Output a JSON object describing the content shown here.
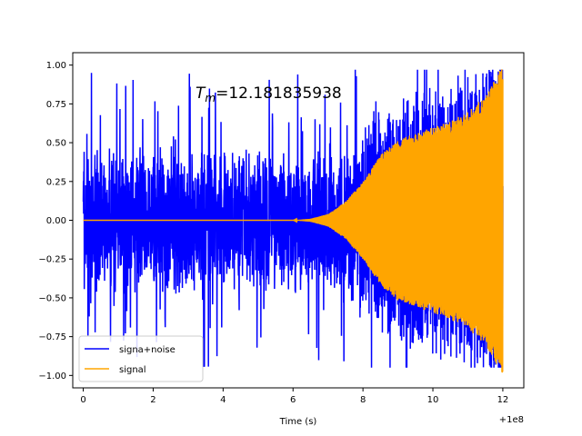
{
  "chart_data": {
    "type": "line",
    "title": "",
    "xlabel": "Time (s)",
    "ylabel": "",
    "x_offset_label": "+1e8",
    "xlim": [
      -0.3,
      12.6
    ],
    "ylim": [
      -1.08,
      1.08
    ],
    "x_ticks": [
      0,
      2,
      4,
      6,
      8,
      10,
      12
    ],
    "x_tick_labels": [
      "0",
      "2",
      "4",
      "6",
      "8",
      "10",
      "12"
    ],
    "y_ticks": [
      -1.0,
      -0.75,
      -0.5,
      -0.25,
      0.0,
      0.25,
      0.5,
      0.75,
      1.0
    ],
    "y_tick_labels": [
      "−1.00",
      "−0.75",
      "−0.50",
      "−0.25",
      "0.00",
      "0.25",
      "0.50",
      "0.75",
      "1.00"
    ],
    "annotation": {
      "symbol": "T",
      "subscript": "m",
      "value": "=12.181835938"
    },
    "legend_position": "lower-left",
    "series": [
      {
        "name": "signa+noise",
        "color": "#0000ff",
        "description": "noisy oscillation around zero, amplitude roughly 0.5 with spikes up to about 0.95, ending near 1.0",
        "x_start": 0,
        "x_end": 12.0,
        "noise_amplitude": 0.5,
        "spike_amplitude": 0.95
      },
      {
        "name": "signal",
        "color": "#ffa500",
        "description": "chirp signal: near zero until about t=6, amplitude grows to ~0.5 near t=9 and to 1.0 at t=12",
        "envelope": {
          "x": [
            0,
            6.0,
            6.5,
            7.0,
            7.5,
            8.0,
            8.5,
            9.0,
            9.5,
            10.0,
            10.5,
            11.0,
            11.5,
            12.0
          ],
          "y": [
            0,
            0.0,
            0.01,
            0.04,
            0.12,
            0.25,
            0.42,
            0.52,
            0.56,
            0.6,
            0.64,
            0.7,
            0.8,
            1.0
          ]
        }
      }
    ]
  }
}
